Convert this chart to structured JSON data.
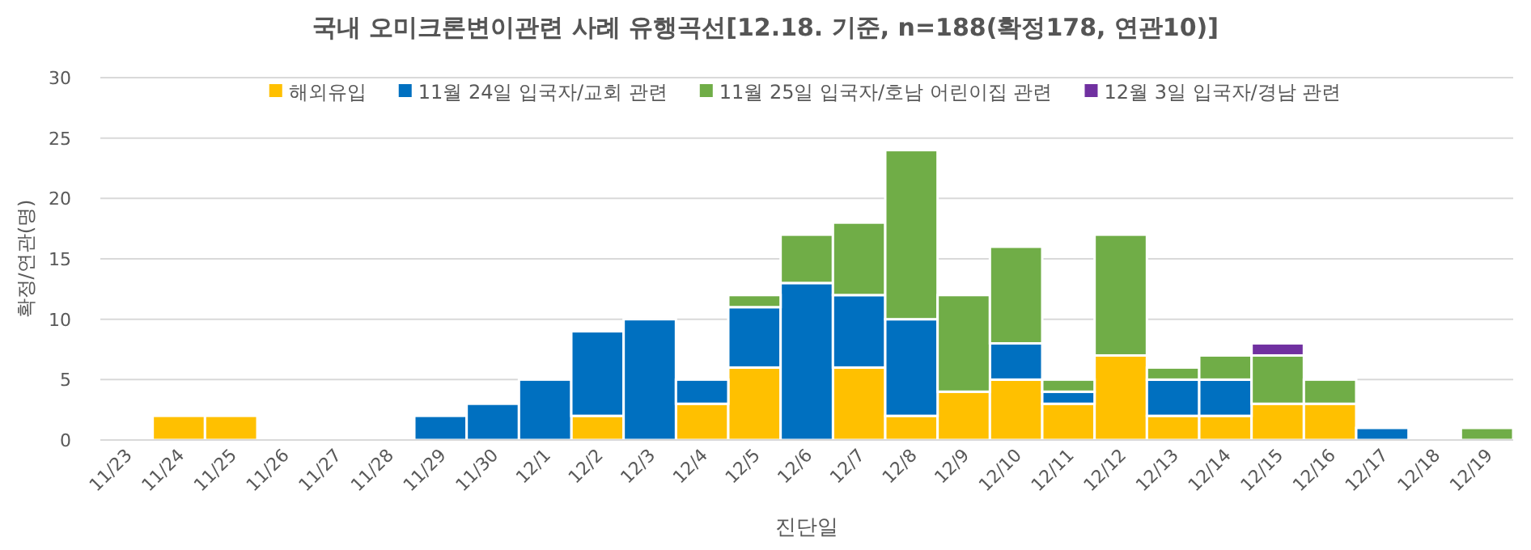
{
  "chart_data": {
    "type": "bar",
    "stacked": true,
    "title": "국내 오미크론변이관련 사례 유행곡선[12.18. 기준, n=188(확정178, 연관10)]",
    "xlabel": "진단일",
    "ylabel": "확정/연관(명)",
    "categories": [
      "11/23",
      "11/24",
      "11/25",
      "11/26",
      "11/27",
      "11/28",
      "11/29",
      "11/30",
      "12/1",
      "12/2",
      "12/3",
      "12/4",
      "12/5",
      "12/6",
      "12/7",
      "12/8",
      "12/9",
      "12/10",
      "12/11",
      "12/12",
      "12/13",
      "12/14",
      "12/15",
      "12/16",
      "12/17",
      "12/18",
      "12/19"
    ],
    "series": [
      {
        "name": "해외유입",
        "color": "#ffc000",
        "values": [
          0,
          2,
          2,
          0,
          0,
          0,
          0,
          0,
          0,
          2,
          0,
          3,
          6,
          0,
          6,
          2,
          4,
          5,
          3,
          7,
          2,
          2,
          3,
          3,
          0,
          0,
          0
        ]
      },
      {
        "name": "11월 24일 입국자/교회 관련",
        "color": "#0070c0",
        "values": [
          0,
          0,
          0,
          0,
          0,
          0,
          2,
          3,
          5,
          7,
          10,
          2,
          5,
          13,
          6,
          8,
          0,
          3,
          1,
          0,
          3,
          3,
          0,
          0,
          1,
          0,
          0
        ]
      },
      {
        "name": "11월 25일 입국자/호남 어린이집 관련",
        "color": "#70ad47",
        "values": [
          0,
          0,
          0,
          0,
          0,
          0,
          0,
          0,
          0,
          0,
          0,
          0,
          1,
          4,
          6,
          14,
          8,
          8,
          1,
          10,
          1,
          2,
          4,
          2,
          0,
          0,
          1
        ]
      },
      {
        "name": "12월 3일 입국자/경남 관련",
        "color": "#7030a0",
        "values": [
          0,
          0,
          0,
          0,
          0,
          0,
          0,
          0,
          0,
          0,
          0,
          0,
          0,
          0,
          0,
          0,
          0,
          0,
          0,
          0,
          0,
          0,
          1,
          0,
          0,
          0,
          0
        ]
      }
    ],
    "ylim": [
      0,
      30
    ],
    "yticks": [
      0,
      5,
      10,
      15,
      20,
      25,
      30
    ],
    "grid": "y",
    "legend": "top"
  }
}
